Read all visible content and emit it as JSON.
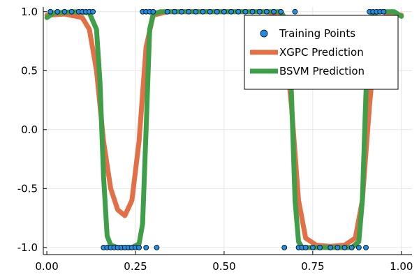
{
  "chart_data": {
    "type": "line",
    "xlim": [
      -0.01,
      1.03
    ],
    "ylim": [
      -1.06,
      1.04
    ],
    "x_ticks": [
      0.0,
      0.25,
      0.5,
      0.75,
      1.0
    ],
    "x_tick_labels": [
      "0.00",
      "0.25",
      "0.50",
      "0.75",
      "1.00"
    ],
    "y_ticks": [
      -1.0,
      -0.5,
      0.0,
      0.5,
      1.0
    ],
    "y_tick_labels": [
      "-1.0",
      "-0.5",
      "0.0",
      "0.5",
      "1.0"
    ],
    "grid": true,
    "legend_position": "top-right",
    "series": [
      {
        "name": "Training Points",
        "kind": "scatter",
        "color": "#1f8ee6",
        "x": [
          0.01,
          0.03,
          0.05,
          0.07,
          0.09,
          0.1,
          0.11,
          0.12,
          0.13,
          0.16,
          0.17,
          0.18,
          0.19,
          0.2,
          0.21,
          0.22,
          0.23,
          0.24,
          0.25,
          0.26,
          0.27,
          0.28,
          0.28,
          0.29,
          0.3,
          0.31,
          0.34,
          0.36,
          0.38,
          0.4,
          0.42,
          0.44,
          0.46,
          0.48,
          0.5,
          0.52,
          0.54,
          0.56,
          0.58,
          0.6,
          0.62,
          0.64,
          0.66,
          0.67,
          0.7,
          0.71,
          0.72,
          0.73,
          0.75,
          0.77,
          0.8,
          0.82,
          0.84,
          0.86,
          0.88,
          0.9,
          0.91,
          0.92,
          0.93,
          0.94,
          0.95
        ],
        "y": [
          1,
          1,
          1,
          1,
          1,
          1,
          1,
          1,
          1,
          -1,
          -1,
          -1,
          -1,
          -1,
          -1,
          -1,
          -1,
          -1,
          -1,
          -1,
          1,
          1,
          -1,
          1,
          1,
          -1,
          1,
          1,
          1,
          1,
          1,
          1,
          1,
          1,
          1,
          1,
          1,
          1,
          1,
          1,
          1,
          1,
          1,
          -1,
          1,
          -1,
          -1,
          -1,
          -1,
          -1,
          -1,
          -1,
          -1,
          -1,
          -1,
          -1,
          1,
          1,
          1,
          1,
          1
        ]
      },
      {
        "name": "XGPC Prediction",
        "kind": "line",
        "color": "#e26f46",
        "x": [
          0.0,
          0.05,
          0.1,
          0.12,
          0.14,
          0.16,
          0.18,
          0.2,
          0.22,
          0.24,
          0.26,
          0.28,
          0.3,
          0.34,
          0.5,
          0.62,
          0.65,
          0.67,
          0.69,
          0.71,
          0.73,
          0.76,
          0.8,
          0.84,
          0.87,
          0.89,
          0.91,
          0.93,
          0.96,
          1.0
        ],
        "y": [
          0.97,
          0.98,
          0.95,
          0.85,
          0.5,
          -0.1,
          -0.5,
          -0.68,
          -0.73,
          -0.6,
          -0.1,
          0.7,
          0.97,
          1.0,
          1.0,
          1.0,
          0.98,
          0.8,
          0.2,
          -0.6,
          -0.92,
          -0.98,
          -0.99,
          -0.98,
          -0.92,
          -0.6,
          0.2,
          0.85,
          0.98,
          0.97
        ]
      },
      {
        "name": "BSVM Prediction",
        "kind": "line",
        "color": "#3f9e48",
        "x": [
          0.0,
          0.02,
          0.08,
          0.12,
          0.14,
          0.15,
          0.16,
          0.17,
          0.18,
          0.2,
          0.24,
          0.26,
          0.27,
          0.28,
          0.29,
          0.3,
          0.32,
          0.5,
          0.66,
          0.68,
          0.69,
          0.7,
          0.71,
          0.72,
          0.74,
          0.86,
          0.88,
          0.89,
          0.9,
          0.91,
          0.92,
          0.94,
          0.98,
          1.0
        ],
        "y": [
          0.95,
          0.99,
          1.0,
          0.99,
          0.85,
          0.4,
          -0.4,
          -0.9,
          -0.98,
          -1.0,
          -1.0,
          -0.97,
          -0.8,
          0.0,
          0.85,
          0.98,
          1.0,
          1.0,
          1.0,
          0.9,
          0.3,
          -0.6,
          -0.95,
          -1.0,
          -1.0,
          -1.0,
          -0.95,
          -0.6,
          0.3,
          0.9,
          0.99,
          1.0,
          1.0,
          0.96
        ]
      }
    ]
  }
}
